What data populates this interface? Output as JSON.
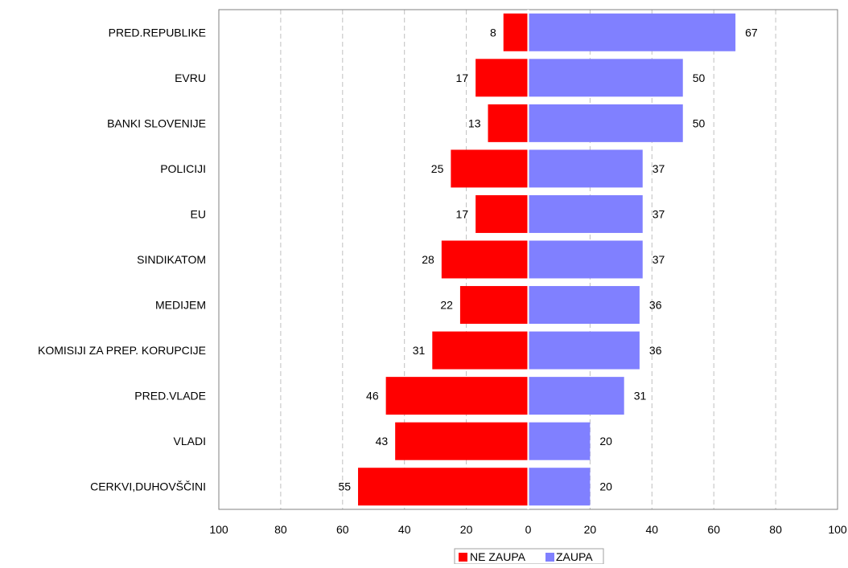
{
  "chart_data": {
    "type": "bar",
    "orientation": "horizontal",
    "layout": "diverging",
    "categories": [
      "PRED.REPUBLIKE",
      "EVRU",
      "BANKI SLOVENIJE",
      "POLICIJI",
      "EU",
      "SINDIKATOM",
      "MEDIJEM",
      "KOMISIJI ZA PREP. KORUPCIJE",
      "PRED.VLADE",
      "VLADI",
      "CERKVI,DUHOVŠČINI"
    ],
    "series": [
      {
        "name": "NE ZAUPA",
        "color": "#ff0000",
        "direction": "left",
        "values": [
          8,
          17,
          13,
          25,
          17,
          28,
          22,
          31,
          46,
          43,
          55
        ]
      },
      {
        "name": "ZAUPA",
        "color": "#8080ff",
        "direction": "right",
        "values": [
          67,
          50,
          50,
          37,
          37,
          37,
          36,
          36,
          31,
          20,
          20
        ]
      }
    ],
    "x_ticks": [
      "100",
      "80",
      "60",
      "40",
      "20",
      "0",
      "20",
      "40",
      "60",
      "80",
      "100"
    ],
    "xlim": [
      -100,
      100
    ],
    "grid": "vertical dashed",
    "legend_position": "bottom-center"
  }
}
